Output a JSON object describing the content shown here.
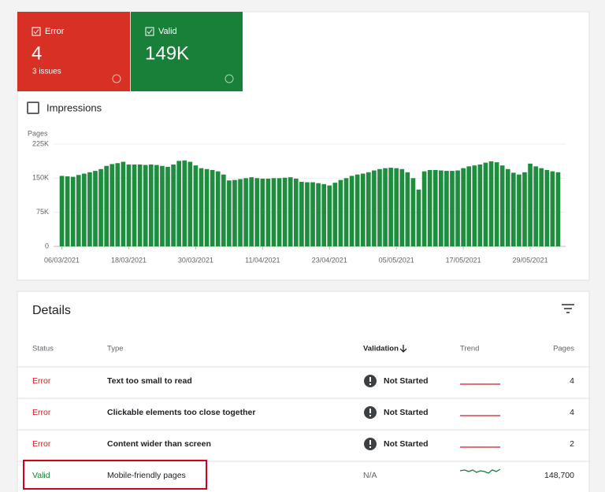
{
  "cards": [
    {
      "label": "Error",
      "count": "4",
      "subtitle": "3 issues"
    },
    {
      "label": "Valid",
      "count": "149K"
    }
  ],
  "impressions": "Impressions",
  "chart_data": {
    "type": "bar",
    "y_label": "Pages",
    "categories": [
      "06/03/2021",
      null,
      null,
      null,
      null,
      null,
      null,
      null,
      null,
      null,
      null,
      null,
      "18/03/2021",
      null,
      null,
      null,
      null,
      null,
      null,
      null,
      null,
      null,
      null,
      null,
      "30/03/2021",
      null,
      null,
      null,
      null,
      null,
      null,
      null,
      null,
      null,
      null,
      null,
      "11/04/2021",
      null,
      null,
      null,
      null,
      null,
      null,
      null,
      null,
      null,
      null,
      null,
      "23/04/2021",
      null,
      null,
      null,
      null,
      null,
      null,
      null,
      null,
      null,
      null,
      null,
      "05/05/2021",
      null,
      null,
      null,
      null,
      null,
      null,
      null,
      null,
      null,
      null,
      null,
      "17/05/2021",
      null,
      null,
      null,
      null,
      null,
      null,
      null,
      null,
      null,
      null,
      null,
      "29/05/2021",
      null,
      null,
      null,
      null,
      null
    ],
    "values": [
      155000,
      154000,
      153000,
      157000,
      160000,
      163000,
      166000,
      170000,
      177000,
      181000,
      183000,
      186000,
      180000,
      180000,
      180000,
      179000,
      180000,
      179000,
      177000,
      175000,
      180000,
      188000,
      189000,
      186000,
      178000,
      172000,
      170000,
      168000,
      165000,
      158000,
      145000,
      146000,
      148000,
      150000,
      152000,
      150000,
      149000,
      149000,
      150000,
      150000,
      151000,
      152000,
      149000,
      142000,
      141000,
      141000,
      139000,
      137000,
      134000,
      140000,
      146000,
      150000,
      155000,
      158000,
      160000,
      163000,
      167000,
      170000,
      172000,
      173000,
      172000,
      170000,
      163000,
      150000,
      125000,
      165000,
      168000,
      168000,
      167000,
      166000,
      166000,
      167000,
      172000,
      176000,
      178000,
      180000,
      184000,
      187000,
      185000,
      178000,
      170000,
      162000,
      158000,
      163000,
      182000,
      176000,
      172000,
      168000,
      165000,
      163000
    ],
    "color": "#1e8e3e",
    "ylim": [
      0,
      225000
    ],
    "yticks": [
      0,
      {
        "value": 75000,
        "label": "75K"
      },
      {
        "value": 150000,
        "label": "150K"
      },
      {
        "value": 225000,
        "label": "225K"
      }
    ],
    "grid": true
  },
  "details": {
    "title": "Details",
    "columns": [
      "Status",
      "Type",
      "Validation",
      "Trend",
      "Pages"
    ],
    "rows": [
      {
        "status": "Error",
        "type": "Text too small to read",
        "validation": "Not Started",
        "pages": "4"
      },
      {
        "status": "Error",
        "type": "Clickable elements too close together",
        "validation": "Not Started",
        "pages": "4"
      },
      {
        "status": "Error",
        "type": "Content wider than screen",
        "validation": "Not Started",
        "pages": "2"
      },
      {
        "status": "Valid",
        "type": "Mobile-friendly pages",
        "validation": "N/A",
        "pages": "148,700"
      }
    ]
  }
}
